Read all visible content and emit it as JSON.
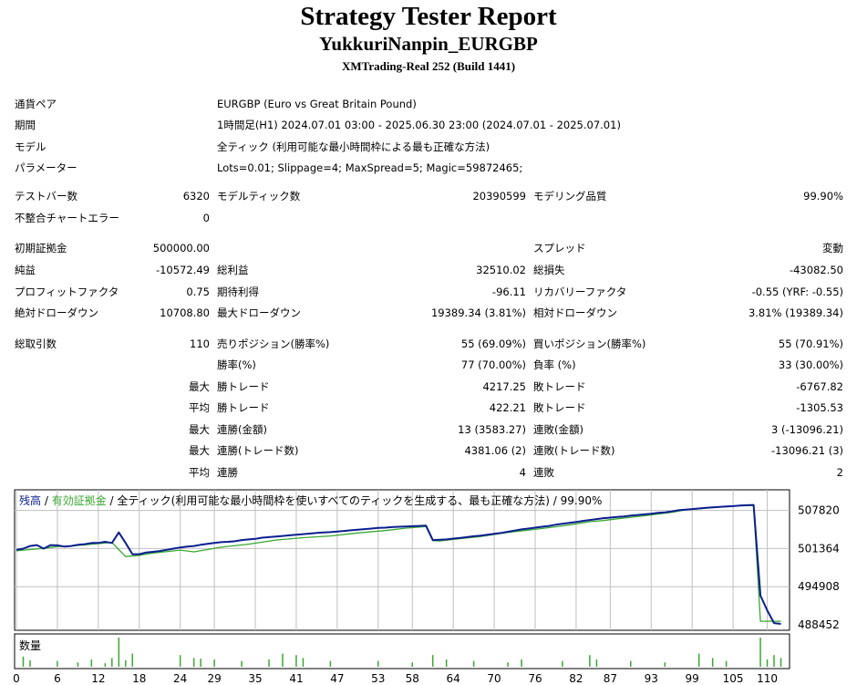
{
  "header": {
    "title": "Strategy Tester Report",
    "ea_name": "YukkuriNanpin_EURGBP",
    "server": "XMTrading-Real 252 (Build 1441)"
  },
  "info": {
    "pair_label": "通貨ペア",
    "pair_value": "EURGBP (Euro vs Great Britain Pound)",
    "period_label": "期間",
    "period_value": "1時間足(H1) 2024.07.01 03:00 - 2025.06.30 23:00 (2024.07.01 - 2025.07.01)",
    "model_label": "モデル",
    "model_value": "全ティック (利用可能な最小時間枠による最も正確な方法)",
    "params_label": "パラメーター",
    "params_value": "Lots=0.01; Slippage=4; MaxSpread=5; Magic=59872465;"
  },
  "stats": {
    "test_bars_label": "テストバー数",
    "test_bars_value": "6320",
    "model_ticks_label": "モデルティック数",
    "model_ticks_value": "20390599",
    "model_quality_label": "モデリング品質",
    "model_quality_value": "99.90%",
    "mismatch_label": "不整合チャートエラー",
    "mismatch_value": "0",
    "initial_deposit_label": "初期証拠金",
    "initial_deposit_value": "500000.00",
    "spread_label": "スプレッド",
    "spread_value": "変動",
    "net_profit_label": "純益",
    "net_profit_value": "-10572.49",
    "gross_profit_label": "総利益",
    "gross_profit_value": "32510.02",
    "gross_loss_label": "総損失",
    "gross_loss_value": "-43082.50",
    "profit_factor_label": "プロフィットファクタ",
    "profit_factor_value": "0.75",
    "expected_payoff_label": "期待利得",
    "expected_payoff_value": "-96.11",
    "recovery_factor_label": "リカバリーファクタ",
    "recovery_factor_value": "-0.55 (YRF: -0.55)",
    "abs_dd_label": "絶対ドローダウン",
    "abs_dd_value": "10708.80",
    "max_dd_label": "最大ドローダウン",
    "max_dd_value": "19389.34 (3.81%)",
    "rel_dd_label": "相対ドローダウン",
    "rel_dd_value": "3.81% (19389.34)",
    "total_trades_label": "総取引数",
    "total_trades_value": "110",
    "short_label": "売りポジション(勝率%)",
    "short_value": "55 (69.09%)",
    "long_label": "買いポジション(勝率%)",
    "long_value": "55 (70.91%)",
    "win_rate_label": "勝率(%)",
    "win_rate_value": "77 (70.00%)",
    "loss_rate_label": "負率 (%)",
    "loss_rate_value": "33 (30.00%)",
    "largest_prefix": "最大",
    "largest_win_label": "勝トレード",
    "largest_win_value": "4217.25",
    "largest_loss_label": "敗トレード",
    "largest_loss_value": "-6767.82",
    "average_prefix": "平均",
    "avg_win_label": "勝トレード",
    "avg_win_value": "422.21",
    "avg_loss_label": "敗トレード",
    "avg_loss_value": "-1305.53",
    "max_prefix_1": "最大",
    "cons_win_money_label": "連勝(金額)",
    "cons_win_money_value": "13 (3583.27)",
    "cons_loss_money_label": "連敗(金額)",
    "cons_loss_money_value": "3 (-13096.21)",
    "max_prefix_2": "最大",
    "cons_win_count_label": "連勝(トレード数)",
    "cons_win_count_value": "4381.06 (2)",
    "cons_loss_count_label": "連敗(トレード数)",
    "cons_loss_count_value": "-13096.21 (3)",
    "avg_prefix_2": "平均",
    "avg_cons_win_label": "連勝",
    "avg_cons_win_value": "4",
    "avg_cons_loss_label": "連敗",
    "avg_cons_loss_value": "2"
  },
  "chart_data": {
    "type": "line",
    "legend_balance": "残高",
    "legend_sep1": " / ",
    "legend_equity": "有効証拠金",
    "legend_rest": " / 全ティック(利用可能な最小時間枠を使いすべてのティックを生成する、最も正確な方法) / 99.90%",
    "volume_label": "数量",
    "colors": {
      "balance": "#0a1f8f",
      "equity": "#3aa832",
      "grid": "#c0c0c0",
      "volume": "#3aa832"
    },
    "ylim": [
      488452,
      511000
    ],
    "y_ticks": [
      488452,
      494908,
      501364,
      507820
    ],
    "xlim": [
      0,
      113
    ],
    "x_ticks": [
      0,
      6,
      12,
      18,
      24,
      29,
      35,
      41,
      47,
      53,
      58,
      64,
      70,
      76,
      82,
      87,
      93,
      99,
      105,
      110
    ],
    "series": [
      {
        "name": "残高",
        "points": [
          [
            0,
            501150
          ],
          [
            1,
            501350
          ],
          [
            2,
            501800
          ],
          [
            3,
            501950
          ],
          [
            4,
            501350
          ],
          [
            5,
            501950
          ],
          [
            6,
            501900
          ],
          [
            7,
            501700
          ],
          [
            8,
            501800
          ],
          [
            9,
            502000
          ],
          [
            10,
            502100
          ],
          [
            11,
            502300
          ],
          [
            12,
            502300
          ],
          [
            13,
            502500
          ],
          [
            14,
            502300
          ],
          [
            15,
            504100
          ],
          [
            16,
            502300
          ],
          [
            17,
            500400
          ],
          [
            18,
            500400
          ],
          [
            19,
            500700
          ],
          [
            20,
            500800
          ],
          [
            21,
            500950
          ],
          [
            22,
            501150
          ],
          [
            23,
            501350
          ],
          [
            24,
            501550
          ],
          [
            25,
            501700
          ],
          [
            26,
            501800
          ],
          [
            27,
            502000
          ],
          [
            28,
            502150
          ],
          [
            29,
            502300
          ],
          [
            30,
            502450
          ],
          [
            31,
            502500
          ],
          [
            32,
            502600
          ],
          [
            33,
            502800
          ],
          [
            34,
            502900
          ],
          [
            35,
            503000
          ],
          [
            36,
            503200
          ],
          [
            37,
            503300
          ],
          [
            38,
            503400
          ],
          [
            39,
            503500
          ],
          [
            40,
            503600
          ],
          [
            41,
            503700
          ],
          [
            42,
            503800
          ],
          [
            43,
            503900
          ],
          [
            44,
            504000
          ],
          [
            45,
            504100
          ],
          [
            46,
            504150
          ],
          [
            47,
            504250
          ],
          [
            48,
            504350
          ],
          [
            49,
            504450
          ],
          [
            50,
            504550
          ],
          [
            51,
            504650
          ],
          [
            52,
            504750
          ],
          [
            53,
            504850
          ],
          [
            54,
            504900
          ],
          [
            55,
            505000
          ],
          [
            56,
            505050
          ],
          [
            57,
            505100
          ],
          [
            58,
            505150
          ],
          [
            59,
            505200
          ],
          [
            60,
            505250
          ],
          [
            61,
            502800
          ],
          [
            62,
            502850
          ],
          [
            63,
            502900
          ],
          [
            64,
            503050
          ],
          [
            65,
            503150
          ],
          [
            66,
            503300
          ],
          [
            67,
            503450
          ],
          [
            68,
            503550
          ],
          [
            69,
            503700
          ],
          [
            70,
            503850
          ],
          [
            71,
            504000
          ],
          [
            72,
            504200
          ],
          [
            73,
            504400
          ],
          [
            74,
            504600
          ],
          [
            75,
            504750
          ],
          [
            76,
            504900
          ],
          [
            77,
            505050
          ],
          [
            78,
            505200
          ],
          [
            79,
            505400
          ],
          [
            80,
            505550
          ],
          [
            81,
            505700
          ],
          [
            82,
            505850
          ],
          [
            83,
            506050
          ],
          [
            84,
            506200
          ],
          [
            85,
            506350
          ],
          [
            86,
            506500
          ],
          [
            87,
            506600
          ],
          [
            88,
            506700
          ],
          [
            89,
            506800
          ],
          [
            90,
            506950
          ],
          [
            91,
            507050
          ],
          [
            92,
            507150
          ],
          [
            93,
            507250
          ],
          [
            94,
            507400
          ],
          [
            95,
            507500
          ],
          [
            96,
            507650
          ],
          [
            97,
            507850
          ],
          [
            98,
            507950
          ],
          [
            99,
            508050
          ],
          [
            100,
            508150
          ],
          [
            101,
            508250
          ],
          [
            102,
            508350
          ],
          [
            103,
            508400
          ],
          [
            104,
            508500
          ],
          [
            105,
            508550
          ],
          [
            106,
            508650
          ],
          [
            107,
            508700
          ],
          [
            108,
            508750
          ],
          [
            109,
            493400
          ],
          [
            110,
            490900
          ],
          [
            111,
            488750
          ],
          [
            112,
            488600
          ]
        ]
      },
      {
        "name": "有効証拠金",
        "points": [
          [
            0,
            501000
          ],
          [
            2,
            501200
          ],
          [
            4,
            501400
          ],
          [
            6,
            501700
          ],
          [
            8,
            501800
          ],
          [
            10,
            502000
          ],
          [
            12,
            502200
          ],
          [
            14,
            502400
          ],
          [
            15,
            501200
          ],
          [
            16,
            500000
          ],
          [
            18,
            500200
          ],
          [
            20,
            500600
          ],
          [
            24,
            501100
          ],
          [
            26,
            500800
          ],
          [
            28,
            501200
          ],
          [
            30,
            501600
          ],
          [
            34,
            502100
          ],
          [
            38,
            502800
          ],
          [
            42,
            503200
          ],
          [
            46,
            503500
          ],
          [
            50,
            504000
          ],
          [
            54,
            504400
          ],
          [
            57,
            504800
          ],
          [
            60,
            505100
          ],
          [
            61,
            502700
          ],
          [
            62,
            502650
          ],
          [
            64,
            502900
          ],
          [
            68,
            503400
          ],
          [
            72,
            504100
          ],
          [
            76,
            504600
          ],
          [
            80,
            505200
          ],
          [
            84,
            505900
          ],
          [
            86,
            506100
          ],
          [
            88,
            506400
          ],
          [
            92,
            506900
          ],
          [
            96,
            507500
          ],
          [
            98,
            507900
          ],
          [
            102,
            508300
          ],
          [
            106,
            508600
          ],
          [
            108,
            508650
          ],
          [
            109,
            489050
          ],
          [
            112,
            489050
          ]
        ]
      }
    ],
    "volume": [
      [
        1,
        0.35
      ],
      [
        2,
        0.22
      ],
      [
        6,
        0.2
      ],
      [
        9,
        0.15
      ],
      [
        11,
        0.25
      ],
      [
        13,
        0.12
      ],
      [
        14,
        0.3
      ],
      [
        15,
        1.0
      ],
      [
        16,
        0.22
      ],
      [
        17,
        0.45
      ],
      [
        24,
        0.4
      ],
      [
        26,
        0.3
      ],
      [
        27,
        0.28
      ],
      [
        29,
        0.25
      ],
      [
        33,
        0.2
      ],
      [
        37,
        0.25
      ],
      [
        39,
        0.45
      ],
      [
        41,
        0.4
      ],
      [
        42,
        0.3
      ],
      [
        46,
        0.2
      ],
      [
        53,
        0.2
      ],
      [
        58,
        0.15
      ],
      [
        61,
        0.4
      ],
      [
        63,
        0.25
      ],
      [
        67,
        0.2
      ],
      [
        72,
        0.15
      ],
      [
        74,
        0.25
      ],
      [
        80,
        0.2
      ],
      [
        84,
        0.4
      ],
      [
        85,
        0.25
      ],
      [
        90,
        0.2
      ],
      [
        95,
        0.15
      ],
      [
        100,
        0.45
      ],
      [
        102,
        0.3
      ],
      [
        104,
        0.2
      ],
      [
        109,
        1.0
      ],
      [
        110,
        0.25
      ],
      [
        111,
        0.4
      ],
      [
        112,
        0.3
      ]
    ]
  }
}
